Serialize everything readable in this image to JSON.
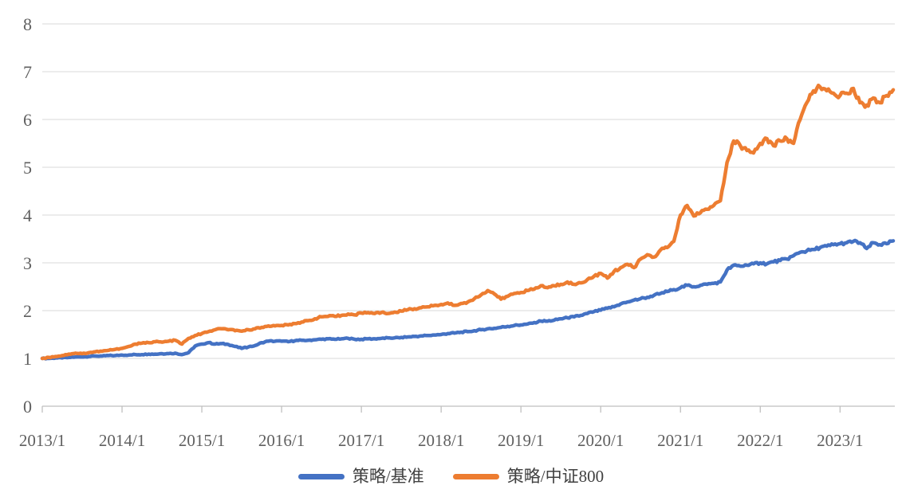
{
  "chart_data": {
    "type": "line",
    "title": "",
    "xlabel": "",
    "ylabel": "",
    "x_unit": "month",
    "x_range": [
      "2013/1",
      "2023/9"
    ],
    "x_tick_labels": [
      "2013/1",
      "2014/1",
      "2015/1",
      "2016/1",
      "2017/1",
      "2018/1",
      "2019/1",
      "2020/1",
      "2021/1",
      "2022/1",
      "2023/1"
    ],
    "y_ticks": [
      0,
      1,
      2,
      3,
      4,
      5,
      6,
      7,
      8
    ],
    "ylim": [
      0,
      8
    ],
    "grid": "horizontal",
    "legend_position": "bottom-center",
    "series": [
      {
        "name": "策略/基准",
        "color": "#4472C4",
        "values": [
          1.0,
          1.0,
          1.01,
          1.01,
          1.02,
          1.03,
          1.03,
          1.04,
          1.05,
          1.05,
          1.06,
          1.06,
          1.07,
          1.07,
          1.08,
          1.08,
          1.09,
          1.09,
          1.1,
          1.1,
          1.11,
          1.08,
          1.12,
          1.26,
          1.3,
          1.33,
          1.3,
          1.31,
          1.29,
          1.25,
          1.21,
          1.24,
          1.27,
          1.33,
          1.36,
          1.36,
          1.36,
          1.35,
          1.37,
          1.38,
          1.38,
          1.39,
          1.4,
          1.41,
          1.4,
          1.41,
          1.42,
          1.4,
          1.4,
          1.41,
          1.41,
          1.42,
          1.43,
          1.43,
          1.44,
          1.45,
          1.46,
          1.47,
          1.48,
          1.49,
          1.5,
          1.52,
          1.53,
          1.55,
          1.56,
          1.58,
          1.6,
          1.62,
          1.63,
          1.65,
          1.67,
          1.69,
          1.7,
          1.72,
          1.75,
          1.78,
          1.78,
          1.8,
          1.83,
          1.85,
          1.87,
          1.9,
          1.94,
          1.98,
          2.01,
          2.05,
          2.08,
          2.14,
          2.18,
          2.22,
          2.25,
          2.28,
          2.32,
          2.36,
          2.4,
          2.44,
          2.48,
          2.53,
          2.5,
          2.53,
          2.55,
          2.57,
          2.6,
          2.85,
          2.95,
          2.93,
          2.95,
          2.98,
          3.0,
          2.98,
          3.02,
          3.05,
          3.08,
          3.15,
          3.22,
          3.25,
          3.28,
          3.32,
          3.35,
          3.38,
          3.4,
          3.42,
          3.45,
          3.42,
          3.3,
          3.42,
          3.38,
          3.4,
          3.46
        ]
      },
      {
        "name": "策略/中证800",
        "color": "#ED7D31",
        "values": [
          1.0,
          1.02,
          1.04,
          1.06,
          1.09,
          1.11,
          1.1,
          1.12,
          1.14,
          1.15,
          1.17,
          1.19,
          1.21,
          1.25,
          1.3,
          1.32,
          1.33,
          1.35,
          1.34,
          1.36,
          1.38,
          1.3,
          1.42,
          1.48,
          1.52,
          1.56,
          1.6,
          1.62,
          1.6,
          1.58,
          1.57,
          1.6,
          1.62,
          1.65,
          1.68,
          1.68,
          1.69,
          1.7,
          1.73,
          1.76,
          1.79,
          1.83,
          1.87,
          1.88,
          1.88,
          1.9,
          1.93,
          1.91,
          1.95,
          1.96,
          1.94,
          1.96,
          1.94,
          1.97,
          1.99,
          2.02,
          2.04,
          2.06,
          2.08,
          2.11,
          2.13,
          2.16,
          2.11,
          2.15,
          2.18,
          2.25,
          2.33,
          2.42,
          2.35,
          2.24,
          2.3,
          2.36,
          2.38,
          2.42,
          2.45,
          2.52,
          2.48,
          2.52,
          2.55,
          2.6,
          2.55,
          2.58,
          2.65,
          2.72,
          2.78,
          2.68,
          2.82,
          2.9,
          2.97,
          2.9,
          3.08,
          3.17,
          3.12,
          3.27,
          3.32,
          3.45,
          4.0,
          4.2,
          3.98,
          4.05,
          4.12,
          4.2,
          4.3,
          5.1,
          5.55,
          5.45,
          5.35,
          5.3,
          5.5,
          5.6,
          5.45,
          5.55,
          5.6,
          5.5,
          6.0,
          6.35,
          6.6,
          6.68,
          6.6,
          6.55,
          6.5,
          6.55,
          6.65,
          6.35,
          6.3,
          6.45,
          6.35,
          6.5,
          6.62
        ]
      }
    ]
  },
  "style_colors": {
    "gridline": "#D9D9D9",
    "axis_line": "#BFBFBF",
    "axis_text": "#5F5F5F",
    "legend_text": "#404040",
    "background": "#FFFFFF"
  }
}
